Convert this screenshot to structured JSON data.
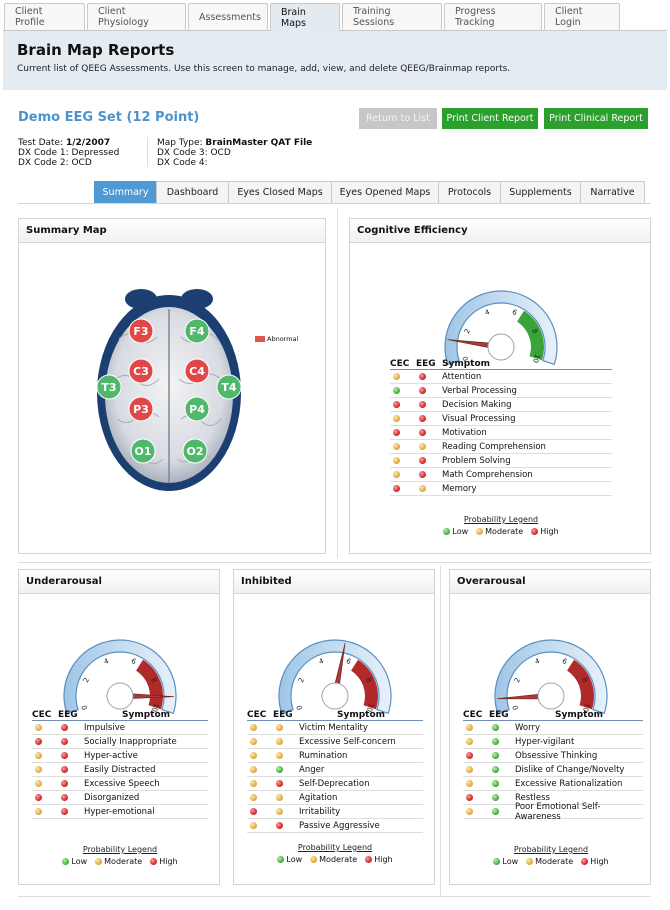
{
  "top_tabs": [
    "Client Profile",
    "Client Physiology",
    "Assessments",
    "Brain Maps",
    "Training Sessions",
    "Progress Tracking",
    "Client Login"
  ],
  "page": {
    "title": "Brain Map Reports",
    "subtitle": "Current list of QEEG Assessments. Use this screen to manage, add, view, and delete QEEG/Brainmap reports."
  },
  "set": {
    "title": "Demo EEG Set (12 Point)",
    "buttons": {
      "return": "Return to List",
      "client_report": "Print Client Report",
      "clinical_report": "Print Clinical Report"
    },
    "test_date_label": "Test Date: ",
    "test_date": "1/2/2007",
    "dx1": "DX Code 1: Depressed",
    "dx2": "DX Code 2: OCD",
    "map_type_label": "Map Type: ",
    "map_type": "BrainMaster QAT File",
    "dx3": "DX Code 3: OCD",
    "dx4": "DX Code 4:"
  },
  "sub_tabs": [
    "Summary",
    "Dashboard",
    "Eyes Closed Maps",
    "Eyes Opened Maps",
    "Protocols",
    "Supplements",
    "Narrative"
  ],
  "summary_map": {
    "title": "Summary Map",
    "legend": "Abnormal",
    "electrodes": [
      {
        "label": "F3",
        "status": "abnormal"
      },
      {
        "label": "F4",
        "status": "normal"
      },
      {
        "label": "C3",
        "status": "abnormal"
      },
      {
        "label": "C4",
        "status": "abnormal"
      },
      {
        "label": "T3",
        "status": "normal"
      },
      {
        "label": "T4",
        "status": "normal"
      },
      {
        "label": "P3",
        "status": "abnormal"
      },
      {
        "label": "P4",
        "status": "normal"
      },
      {
        "label": "O1",
        "status": "normal"
      },
      {
        "label": "O2",
        "status": "normal"
      }
    ]
  },
  "colors": {
    "abnormal": "#e04848",
    "normal": "#4fb86a",
    "accent": "#4f9ad5",
    "button_green": "#2ca02c"
  },
  "table_headers": {
    "cec": "CEC",
    "eeg": "EEG",
    "symptom": "Symptom"
  },
  "probability_legend": {
    "title": "Probability Legend",
    "low": "Low",
    "moderate": "Moderate",
    "high": "High"
  },
  "cognitive": {
    "title": "Cognitive Efficiency",
    "gauge_value": 1.2,
    "rows": [
      {
        "cec": "mod",
        "eeg": "high",
        "symptom": "Attention"
      },
      {
        "cec": "low",
        "eeg": "high",
        "symptom": "Verbal Processing"
      },
      {
        "cec": "high",
        "eeg": "high",
        "symptom": "Decision Making"
      },
      {
        "cec": "mod",
        "eeg": "high",
        "symptom": "Visual Processing"
      },
      {
        "cec": "high",
        "eeg": "high",
        "symptom": "Motivation"
      },
      {
        "cec": "mod",
        "eeg": "mod",
        "symptom": "Reading Comprehension"
      },
      {
        "cec": "mod",
        "eeg": "high",
        "symptom": "Problem Solving"
      },
      {
        "cec": "mod",
        "eeg": "high",
        "symptom": "Math Comprehension"
      },
      {
        "cec": "high",
        "eeg": "mod",
        "symptom": "Memory"
      }
    ]
  },
  "underarousal": {
    "title": "Underarousal",
    "gauge_value": 9.2,
    "rows": [
      {
        "cec": "mod",
        "eeg": "high",
        "symptom": "Impulsive"
      },
      {
        "cec": "high",
        "eeg": "high",
        "symptom": "Socially Inappropriate"
      },
      {
        "cec": "mod",
        "eeg": "high",
        "symptom": "Hyper-active"
      },
      {
        "cec": "mod",
        "eeg": "high",
        "symptom": "Easily Distracted"
      },
      {
        "cec": "mod",
        "eeg": "high",
        "symptom": "Excessive Speech"
      },
      {
        "cec": "high",
        "eeg": "high",
        "symptom": "Disorganized"
      },
      {
        "cec": "mod",
        "eeg": "high",
        "symptom": "Hyper-emotional"
      }
    ]
  },
  "inhibited": {
    "title": "Inhibited",
    "gauge_value": 5.5,
    "rows": [
      {
        "cec": "mod",
        "eeg": "mod",
        "symptom": "Victim Mentality"
      },
      {
        "cec": "mod",
        "eeg": "mod",
        "symptom": "Excessive Self-concern"
      },
      {
        "cec": "mod",
        "eeg": "mod",
        "symptom": "Rumination"
      },
      {
        "cec": "mod",
        "eeg": "low",
        "symptom": "Anger"
      },
      {
        "cec": "mod",
        "eeg": "high",
        "symptom": "Self-Deprecation"
      },
      {
        "cec": "mod",
        "eeg": "mod",
        "symptom": "Agitation"
      },
      {
        "cec": "high",
        "eeg": "mod",
        "symptom": "Irritability"
      },
      {
        "cec": "mod",
        "eeg": "high",
        "symptom": "Passive Aggressive"
      }
    ]
  },
  "overarousal": {
    "title": "Overarousal",
    "gauge_value": 0.7,
    "rows": [
      {
        "cec": "mod",
        "eeg": "low",
        "symptom": "Worry"
      },
      {
        "cec": "mod",
        "eeg": "low",
        "symptom": "Hyper-vigilant"
      },
      {
        "cec": "high",
        "eeg": "low",
        "symptom": "Obsessive Thinking"
      },
      {
        "cec": "mod",
        "eeg": "low",
        "symptom": "Dislike of Change/Novelty"
      },
      {
        "cec": "mod",
        "eeg": "low",
        "symptom": "Excessive Rationalization"
      },
      {
        "cec": "high",
        "eeg": "low",
        "symptom": "Restless"
      },
      {
        "cec": "mod",
        "eeg": "low",
        "symptom": "Poor Emotional Self-Awareness"
      }
    ]
  }
}
